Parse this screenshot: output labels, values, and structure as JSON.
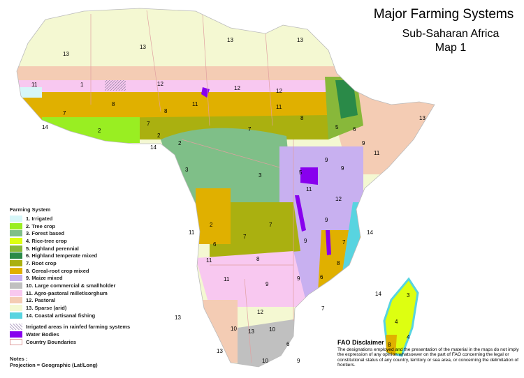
{
  "title": {
    "line1": "Major Farming Systems",
    "line2": "Sub-Saharan Africa",
    "line3": "Map 1"
  },
  "legend": {
    "heading": "Farming System",
    "items": [
      {
        "label": "1. Irrigated",
        "color": "#d6f6f8"
      },
      {
        "label": "2. Tree crop",
        "color": "#99ee22"
      },
      {
        "label": "3. Forest based",
        "color": "#7fbf88"
      },
      {
        "label": "4. Rice-tree crop",
        "color": "#ddff11"
      },
      {
        "label": "5. Highland perennial",
        "color": "#88b83a"
      },
      {
        "label": "6. Highland temperate mixed",
        "color": "#2a8a48"
      },
      {
        "label": "7. Root crop",
        "color": "#aab010"
      },
      {
        "label": "8. Cereal-root crop mixed",
        "color": "#e0b000"
      },
      {
        "label": "9. Maize mixed",
        "color": "#c8b0f0"
      },
      {
        "label": "10. Large commercial & smallholder",
        "color": "#c0c0c0"
      },
      {
        "label": "11. Agro-pastoral millet/sorghum",
        "color": "#f8c8f0"
      },
      {
        "label": "12. Pastoral",
        "color": "#f4ccb4"
      },
      {
        "label": "13. Sparse (arid)",
        "color": "#f4f8d2"
      },
      {
        "label": "14. Coastal artisanal fishing",
        "color": "#58d4e0"
      }
    ],
    "extras": [
      {
        "label": "Irrigated areas in rainfed farming systems"
      },
      {
        "label": "Water Bodies",
        "color": "#8800ee"
      },
      {
        "label": "Country Boundaries",
        "color": "#e0a0a0"
      }
    ],
    "notes_label": "Notes :",
    "projection": "Projection = Geographic (Lat/Long)"
  },
  "disclaimer": {
    "heading": "FAO Disclaimer",
    "text": "The designations employed and the presentation of the material in the maps do not imply the expression of any opinion whatsoever on the part of FAO concerning the legal or constitutional status of any country, territory or sea area, or concerning the delimitation of frontiers."
  },
  "map": {
    "labels": {
      "n1": "1",
      "n2": "2",
      "n3": "3",
      "n4": "4",
      "n5": "5",
      "n6": "6",
      "n7": "7",
      "n8": "8",
      "n9": "9",
      "n10": "10",
      "n11": "11",
      "n12": "12",
      "n13": "13",
      "n14": "14"
    }
  }
}
